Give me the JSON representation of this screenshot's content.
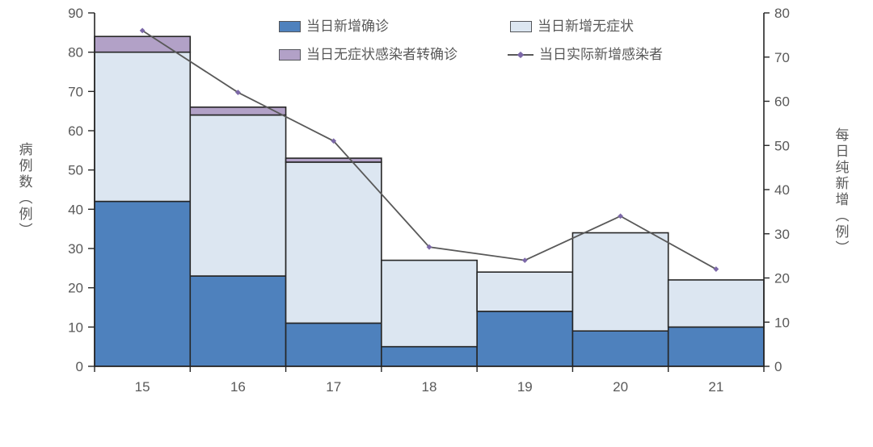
{
  "chart_data": {
    "type": "combo-stacked-bar-line",
    "categories": [
      "15",
      "16",
      "17",
      "18",
      "19",
      "20",
      "21"
    ],
    "series": [
      {
        "name": "当日新增确诊",
        "type": "bar",
        "stack": true,
        "axis": "left",
        "color": "#4E81BD",
        "values": [
          42,
          23,
          11,
          5,
          14,
          9,
          10
        ]
      },
      {
        "name": "当日新增无症状",
        "type": "bar",
        "stack": true,
        "axis": "left",
        "color": "#DCE6F1",
        "values": [
          38,
          41,
          41,
          22,
          10,
          25,
          12
        ]
      },
      {
        "name": "当日无症状感染者转确诊",
        "type": "bar",
        "stack": true,
        "axis": "left",
        "color": "#B2A1C7",
        "values": [
          4,
          2,
          1,
          0,
          0,
          0,
          0
        ]
      },
      {
        "name": "当日实际新增感染者",
        "type": "line",
        "axis": "right",
        "color": "#595959",
        "marker_color": "#7C68A8",
        "values": [
          76,
          62,
          51,
          27,
          24,
          34,
          22
        ]
      }
    ],
    "stack_totals": [
      84,
      66,
      53,
      27,
      24,
      34,
      22
    ],
    "ylabel_left": "病例数（例）",
    "ylabel_right": "每日纯新增（例）",
    "yaxis_left": {
      "min": 0,
      "max": 90,
      "step": 10,
      "ticks": [
        "0",
        "10",
        "20",
        "30",
        "40",
        "50",
        "60",
        "70",
        "80",
        "90"
      ]
    },
    "yaxis_right": {
      "min": 0,
      "max": 80,
      "step": 10,
      "ticks": [
        "0",
        "10",
        "20",
        "30",
        "40",
        "50",
        "60",
        "70",
        "80"
      ]
    },
    "grid": false,
    "legend_position": "top-center",
    "colors": {
      "bar_border": "#262626",
      "axis": "#262626",
      "tick_label": "#595959"
    }
  }
}
